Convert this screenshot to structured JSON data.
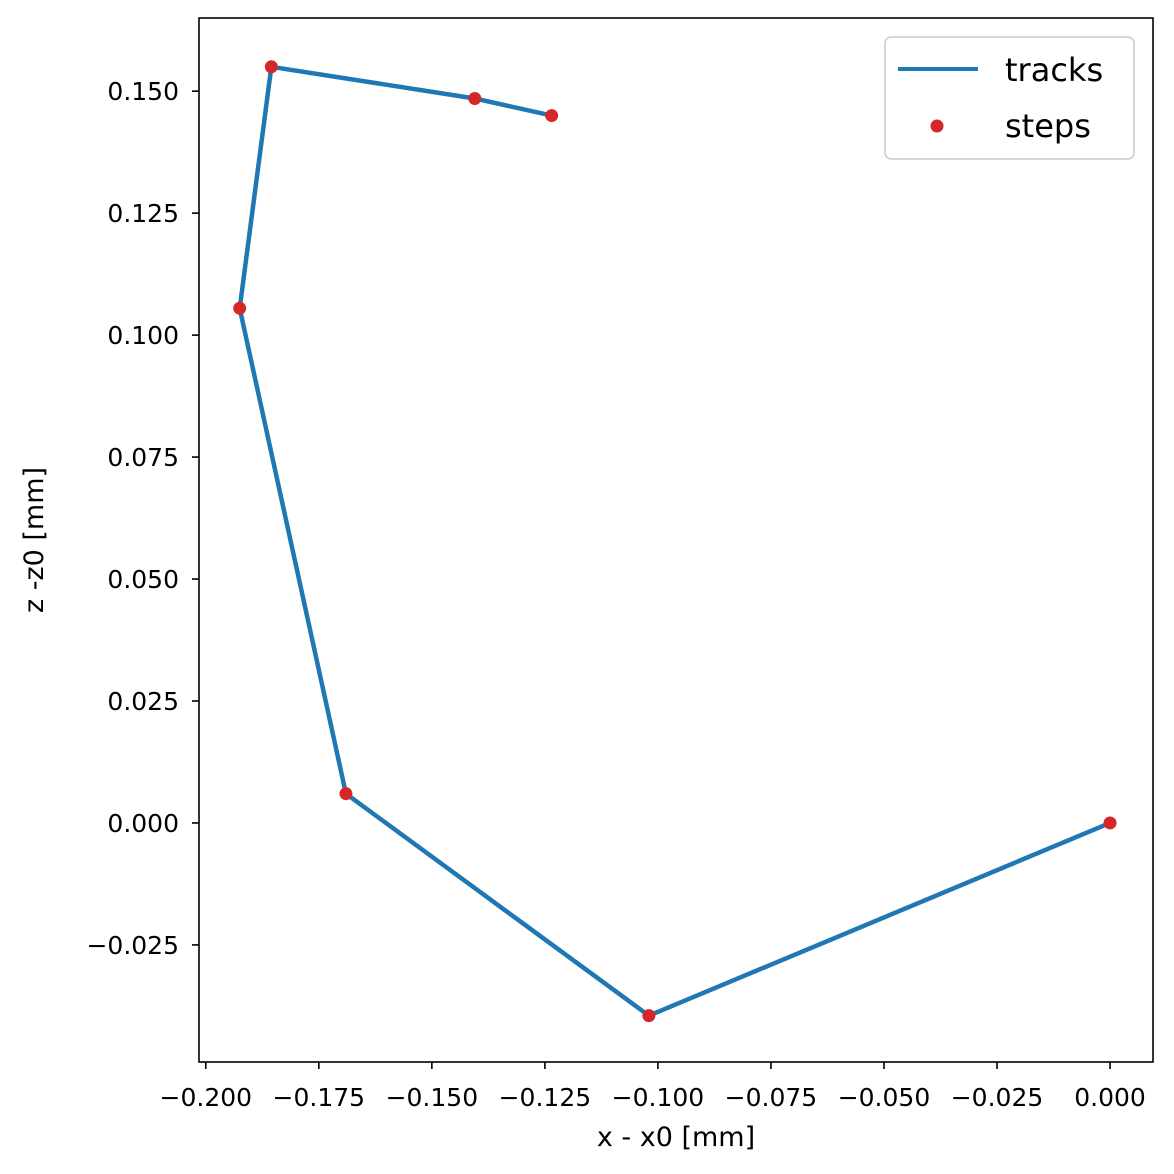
{
  "chart_data": {
    "type": "line",
    "title": "",
    "xlabel": "x - x0 [mm]",
    "ylabel": "z -z0 [mm]",
    "xlim": [
      -0.2015,
      0.0095
    ],
    "ylim": [
      -0.049,
      0.165
    ],
    "xticks": [
      -0.2,
      -0.175,
      -0.15,
      -0.125,
      -0.1,
      -0.075,
      -0.05,
      -0.025,
      0.0
    ],
    "xtick_labels": [
      "−0.200",
      "−0.175",
      "−0.150",
      "−0.125",
      "−0.100",
      "−0.075",
      "−0.050",
      "−0.025",
      "0.000"
    ],
    "yticks": [
      -0.025,
      0.0,
      0.025,
      0.05,
      0.075,
      0.1,
      0.125,
      0.15
    ],
    "ytick_labels": [
      "−0.025",
      "0.000",
      "0.025",
      "0.050",
      "0.075",
      "0.100",
      "0.125",
      "0.150"
    ],
    "grid": false,
    "legend_position": "top-right",
    "series": [
      {
        "name": "tracks",
        "kind": "line",
        "color": "#1f77b4",
        "x": [
          0.0,
          -0.102,
          -0.169,
          -0.1925,
          -0.1855,
          -0.1405,
          -0.1235
        ],
        "y": [
          0.0,
          -0.0395,
          0.006,
          0.1055,
          0.155,
          0.1485,
          0.145
        ]
      },
      {
        "name": "steps",
        "kind": "scatter",
        "color": "#d62728",
        "x": [
          0.0,
          -0.102,
          -0.169,
          -0.1925,
          -0.1855,
          -0.1405,
          -0.1235
        ],
        "y": [
          0.0,
          -0.0395,
          0.006,
          0.1055,
          0.155,
          0.1485,
          0.145
        ]
      }
    ]
  }
}
